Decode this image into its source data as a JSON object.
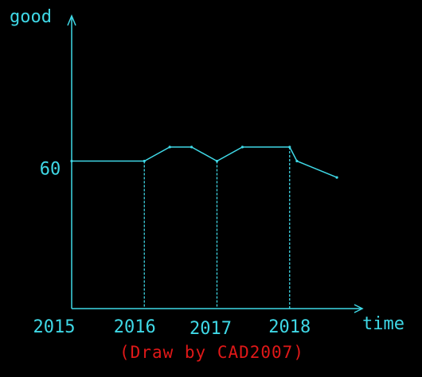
{
  "chart_data": {
    "type": "line",
    "ylabel": "good",
    "xlabel": "time",
    "x_tick_labels": [
      "2015",
      "2016",
      "2017",
      "2018"
    ],
    "y_tick_labels": [
      "60"
    ],
    "x_ticks": [
      2015,
      2016,
      2017,
      2018
    ],
    "y_ticks": [
      60
    ],
    "xlim": [
      2015,
      2019
    ],
    "ylim": [
      0,
      125
    ],
    "grid": false,
    "legend": "none",
    "caption": "(Draw by CAD2007)",
    "colors": {
      "axis": "#3fd8e6",
      "series": "#3fd8e6",
      "caption": "#e01818",
      "background": "#000000"
    },
    "series": [
      {
        "values": [
          {
            "x": 2015.0,
            "y": 63
          },
          {
            "x": 2016.0,
            "y": 63
          },
          {
            "x": 2016.35,
            "y": 69
          },
          {
            "x": 2016.65,
            "y": 69
          },
          {
            "x": 2017.0,
            "y": 63
          },
          {
            "x": 2017.35,
            "y": 69
          },
          {
            "x": 2018.0,
            "y": 69
          },
          {
            "x": 2018.1,
            "y": 63
          },
          {
            "x": 2018.65,
            "y": 56
          }
        ]
      }
    ]
  }
}
